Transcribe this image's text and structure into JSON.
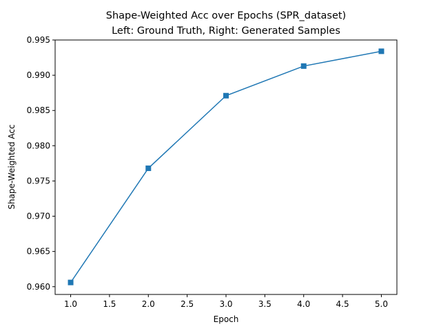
{
  "chart_data": {
    "type": "line",
    "title_line1": "Shape-Weighted Acc over Epochs (SPR_dataset)",
    "title_line2": "Left: Ground Truth, Right: Generated Samples",
    "xlabel": "Epoch",
    "ylabel": "Shape-Weighted Acc",
    "x": [
      1.0,
      2.0,
      3.0,
      4.0,
      5.0
    ],
    "series": [
      {
        "values": [
          0.9606,
          0.9768,
          0.9871,
          0.9913,
          0.9934
        ],
        "color": "#1f77b4",
        "marker": "square"
      }
    ],
    "xticks": [
      "1.0",
      "1.5",
      "2.0",
      "2.5",
      "3.0",
      "3.5",
      "4.0",
      "4.5",
      "5.0"
    ],
    "yticks": [
      "0.960",
      "0.965",
      "0.970",
      "0.975",
      "0.980",
      "0.985",
      "0.990",
      "0.995"
    ],
    "xlim": [
      0.8,
      5.2
    ],
    "ylim": [
      0.9589,
      0.995
    ],
    "grid": false
  }
}
